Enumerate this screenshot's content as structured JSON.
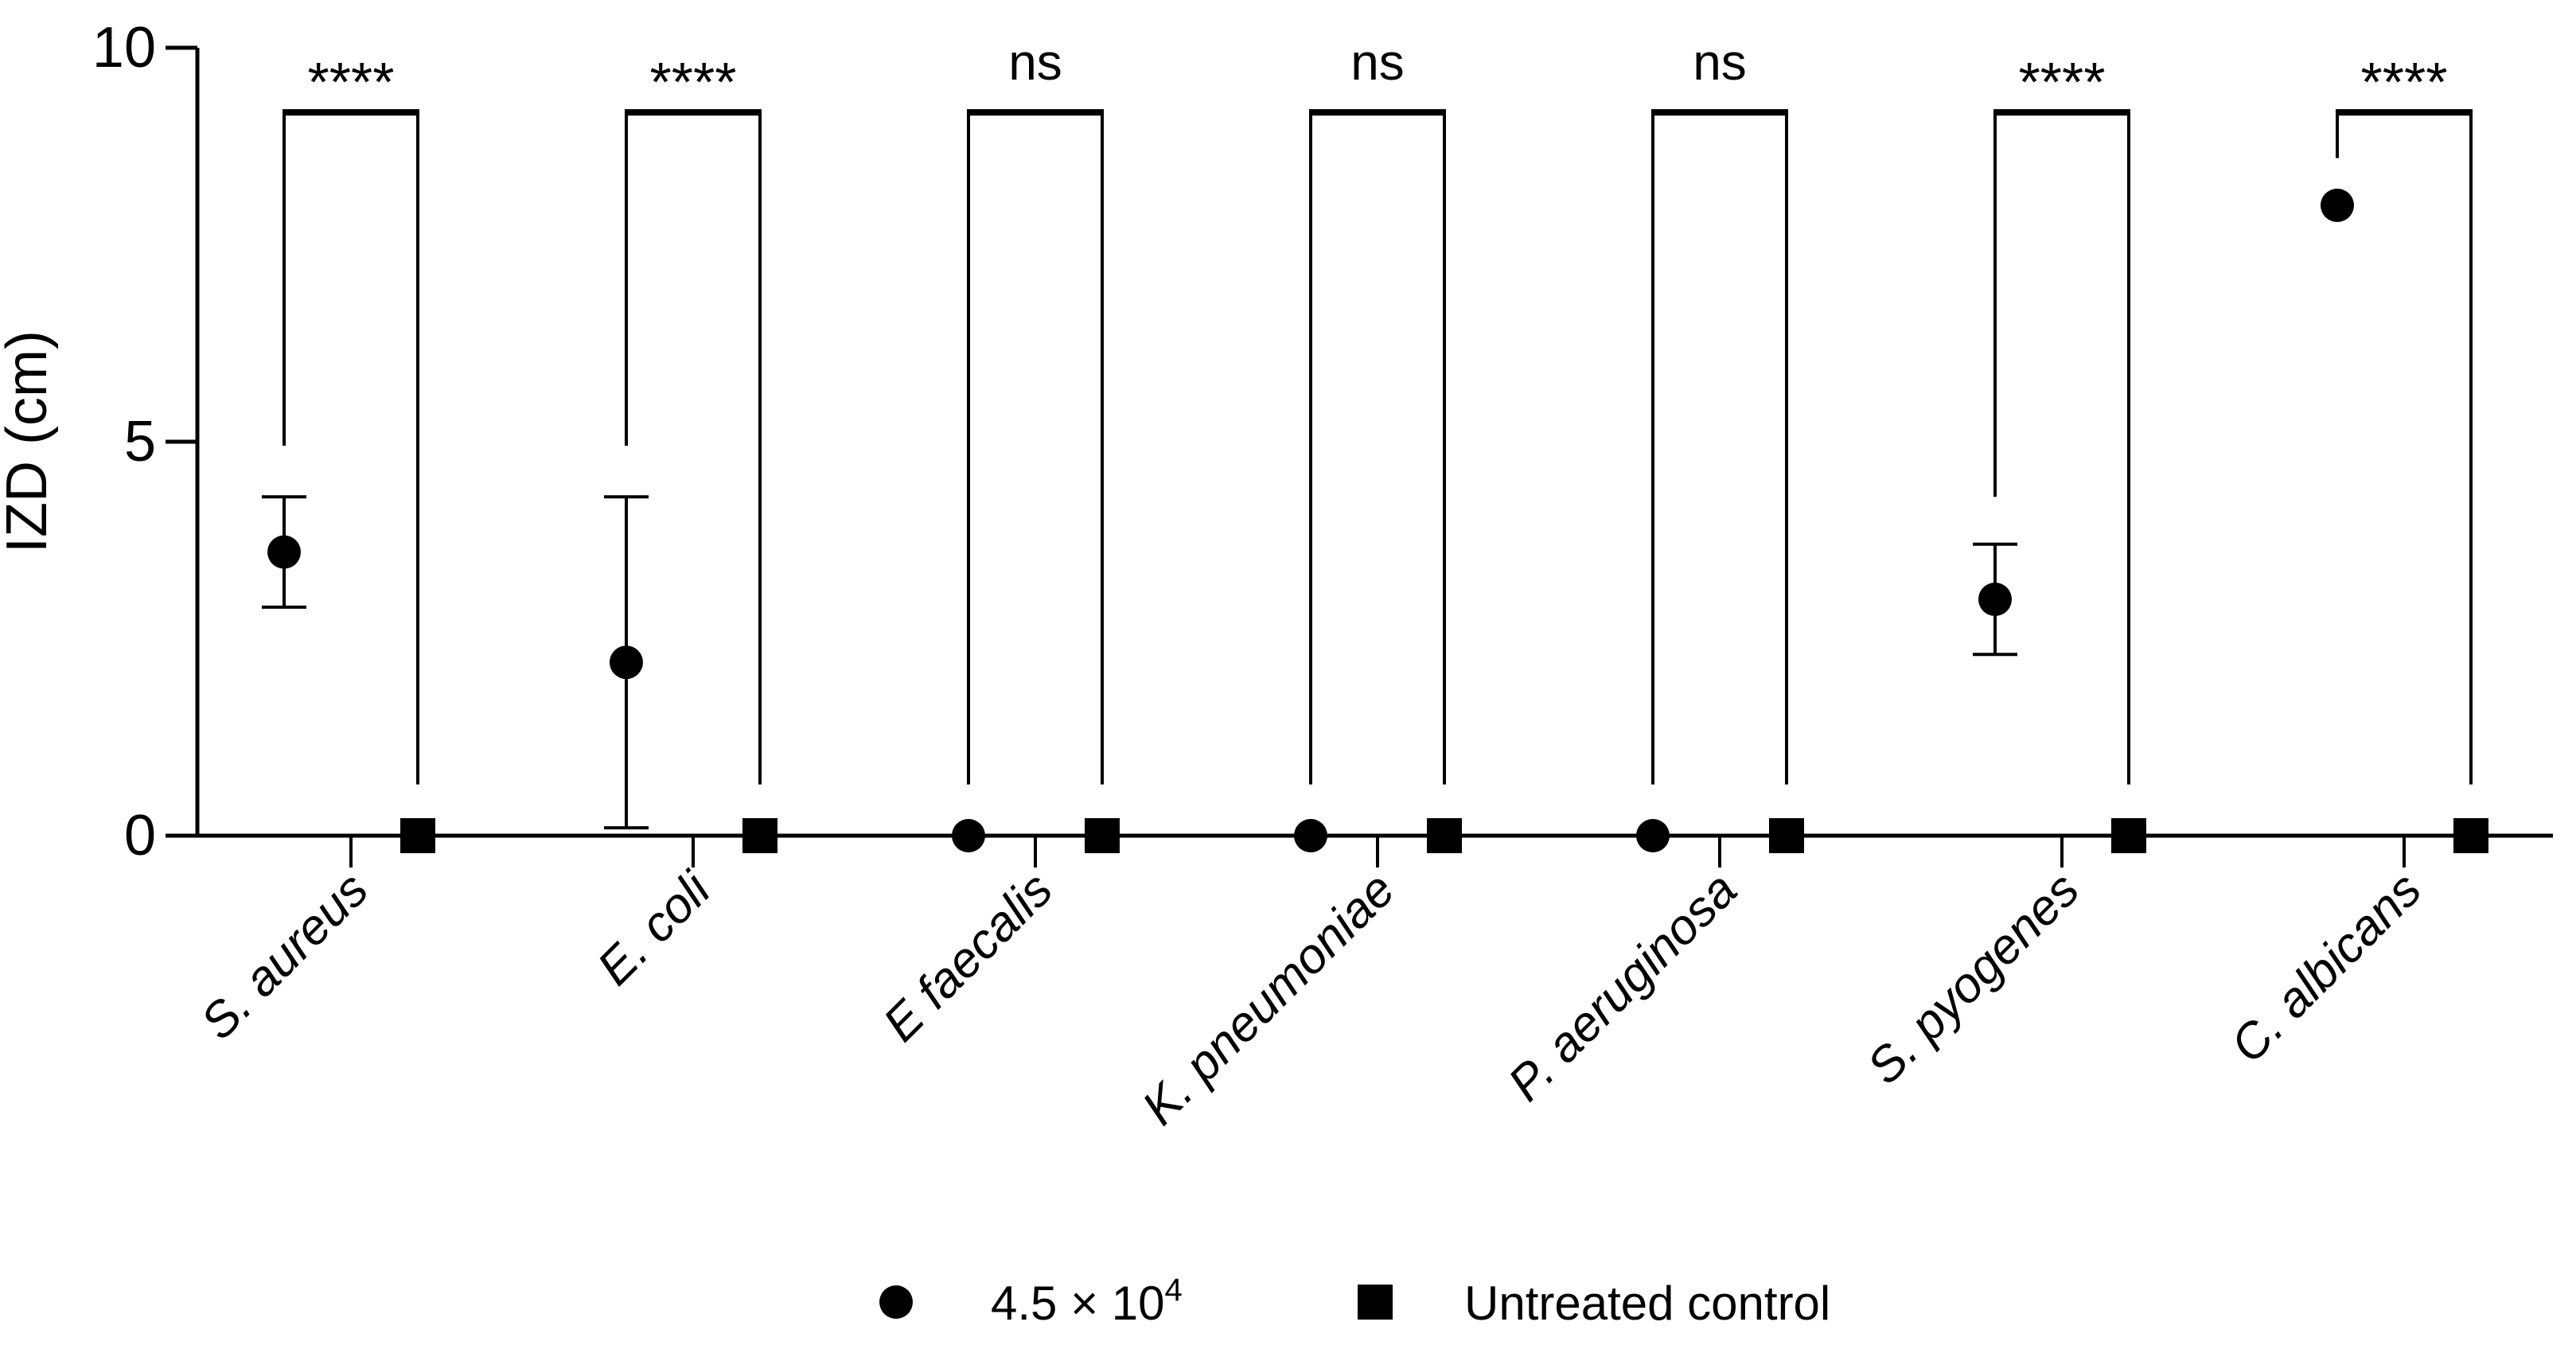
{
  "colors": {
    "background": "#ffffff",
    "ink": "#000000"
  },
  "chart_data": {
    "type": "scatter",
    "title": "",
    "xlabel": "",
    "ylabel": "IZD (cm)",
    "ylim": [
      0,
      10
    ],
    "yticks": [
      0,
      5,
      10
    ],
    "grid": false,
    "legend_position": "bottom",
    "categories": [
      "S. aureus",
      "E. coli",
      "E faecalis",
      "K. pneumoniae",
      "P. aeruginosa",
      "S. pyogenes",
      "C. albicans"
    ],
    "series": [
      {
        "name": "4.5 × 10⁴",
        "marker": "circle",
        "values": [
          3.6,
          2.2,
          0,
          0,
          0,
          3.0,
          8.0
        ],
        "error_low": [
          2.9,
          0.1,
          null,
          null,
          null,
          2.3,
          null
        ],
        "error_high": [
          4.3,
          4.3,
          null,
          null,
          null,
          3.7,
          null
        ]
      },
      {
        "name": "Untreated control",
        "marker": "square",
        "values": [
          0,
          0,
          0,
          0,
          0,
          0,
          0
        ],
        "error_low": [
          null,
          null,
          null,
          null,
          null,
          null,
          null
        ],
        "error_high": [
          null,
          null,
          null,
          null,
          null,
          null,
          null
        ]
      }
    ],
    "significance": {
      "bracket_top": 9.2,
      "annotations": [
        {
          "category": "S. aureus",
          "label": "****",
          "left_arm_bottom": 4.95,
          "right_arm_bottom": 0.65
        },
        {
          "category": "E. coli",
          "label": "****",
          "left_arm_bottom": 4.95,
          "right_arm_bottom": 0.65
        },
        {
          "category": "E faecalis",
          "label": "ns",
          "left_arm_bottom": 0.65,
          "right_arm_bottom": 0.65
        },
        {
          "category": "K. pneumoniae",
          "label": "ns",
          "left_arm_bottom": 0.65,
          "right_arm_bottom": 0.65
        },
        {
          "category": "P. aeruginosa",
          "label": "ns",
          "left_arm_bottom": 0.65,
          "right_arm_bottom": 0.65
        },
        {
          "category": "S. pyogenes",
          "label": "****",
          "left_arm_bottom": 4.3,
          "right_arm_bottom": 0.65
        },
        {
          "category": "C. albicans",
          "label": "****",
          "left_arm_bottom": 8.6,
          "right_arm_bottom": 0.65
        }
      ]
    }
  },
  "legend": {
    "items": [
      {
        "marker": "circle",
        "label": "4.5 × 10⁴",
        "label_base": "4.5 × 10",
        "label_superscript": "4"
      },
      {
        "marker": "square",
        "label": "Untreated control",
        "label_base": "Untreated control",
        "label_superscript": ""
      }
    ]
  }
}
